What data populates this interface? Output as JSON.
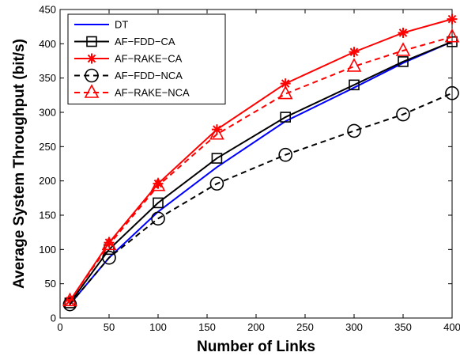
{
  "chart_data": {
    "type": "line",
    "title": "",
    "xlabel": "Number of Links",
    "ylabel": "Average System Throughput (bit/s)",
    "xlim": [
      0,
      400
    ],
    "ylim": [
      0,
      450
    ],
    "xticks": [
      0,
      50,
      100,
      150,
      200,
      250,
      300,
      350,
      400
    ],
    "yticks": [
      0,
      50,
      100,
      150,
      200,
      250,
      300,
      350,
      400,
      450
    ],
    "grid": false,
    "legend_position": "top-left",
    "series": [
      {
        "name": "DT",
        "color": "#0000ff",
        "line": "solid",
        "marker": "none",
        "x": [
          10,
          50,
          100,
          160,
          230,
          300,
          350,
          400
        ],
        "y": [
          20,
          88,
          155,
          220,
          287,
          336,
          372,
          403
        ]
      },
      {
        "name": "AF−FDD−CA",
        "color": "#000000",
        "line": "solid",
        "marker": "square",
        "x": [
          10,
          50,
          100,
          160,
          230,
          300,
          350,
          400
        ],
        "y": [
          22,
          100,
          168,
          233,
          293,
          340,
          374,
          403
        ]
      },
      {
        "name": "AF−RAKE−CA",
        "color": "#ff0000",
        "line": "solid",
        "marker": "star",
        "x": [
          10,
          50,
          100,
          160,
          230,
          300,
          350,
          400
        ],
        "y": [
          25,
          110,
          196,
          275,
          342,
          388,
          416,
          436
        ]
      },
      {
        "name": "AF−FDD−NCA",
        "color": "#000000",
        "line": "dashed",
        "marker": "circle",
        "x": [
          10,
          50,
          100,
          160,
          230,
          300,
          350,
          400
        ],
        "y": [
          20,
          88,
          145,
          196,
          238,
          273,
          297,
          328
        ]
      },
      {
        "name": "AF−RAKE−NCA",
        "color": "#ff0000",
        "line": "dashed",
        "marker": "triangle",
        "x": [
          10,
          50,
          100,
          160,
          230,
          300,
          350,
          400
        ],
        "y": [
          25,
          107,
          193,
          268,
          327,
          367,
          390,
          410
        ]
      }
    ]
  }
}
